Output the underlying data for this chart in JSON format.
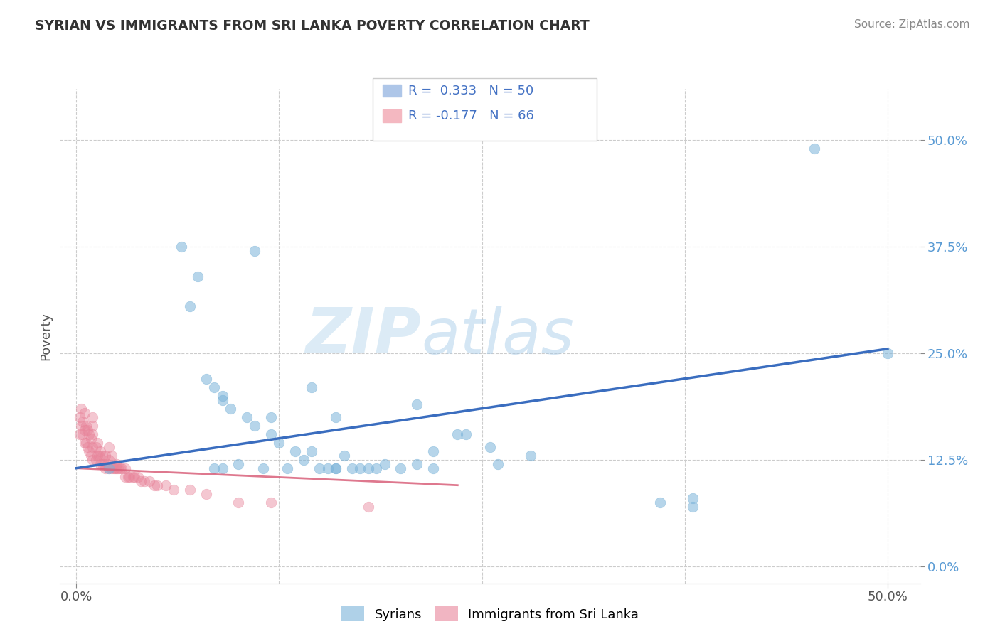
{
  "title": "SYRIAN VS IMMIGRANTS FROM SRI LANKA POVERTY CORRELATION CHART",
  "source": "Source: ZipAtlas.com",
  "ylabel": "Poverty",
  "ytick_values": [
    0.0,
    0.125,
    0.25,
    0.375,
    0.5
  ],
  "xtick_values": [
    0.0,
    0.125,
    0.25,
    0.375,
    0.5
  ],
  "xlim": [
    -0.01,
    0.52
  ],
  "ylim": [
    -0.02,
    0.56
  ],
  "syrians_color": "#7ab3d9",
  "srilanka_color": "#e8849a",
  "blue_line_color": "#3a6dbf",
  "pink_line_color": "#d9607a",
  "watermark_zip": "ZIP",
  "watermark_atlas": "atlas",
  "blue_line_x0": 0.0,
  "blue_line_y0": 0.115,
  "blue_line_x1": 0.5,
  "blue_line_y1": 0.255,
  "pink_line_x0": 0.0,
  "pink_line_y0": 0.115,
  "pink_line_x1": 0.235,
  "pink_line_y1": 0.095,
  "blue_scatter_x": [
    0.02,
    0.085,
    0.1,
    0.115,
    0.13,
    0.145,
    0.155,
    0.165,
    0.175,
    0.185,
    0.09,
    0.095,
    0.105,
    0.11,
    0.12,
    0.125,
    0.135,
    0.14,
    0.15,
    0.16,
    0.17,
    0.18,
    0.19,
    0.2,
    0.21,
    0.07,
    0.075,
    0.08,
    0.085,
    0.09,
    0.16,
    0.22,
    0.24,
    0.26,
    0.28,
    0.065,
    0.11,
    0.145,
    0.21,
    0.36,
    0.38,
    0.22,
    0.255,
    0.5,
    0.455,
    0.09,
    0.12,
    0.16,
    0.235,
    0.38
  ],
  "blue_scatter_y": [
    0.115,
    0.115,
    0.12,
    0.115,
    0.115,
    0.135,
    0.115,
    0.13,
    0.115,
    0.115,
    0.195,
    0.185,
    0.175,
    0.165,
    0.155,
    0.145,
    0.135,
    0.125,
    0.115,
    0.115,
    0.115,
    0.115,
    0.12,
    0.115,
    0.12,
    0.305,
    0.34,
    0.22,
    0.21,
    0.2,
    0.115,
    0.135,
    0.155,
    0.12,
    0.13,
    0.375,
    0.37,
    0.21,
    0.19,
    0.075,
    0.07,
    0.115,
    0.14,
    0.25,
    0.49,
    0.115,
    0.175,
    0.175,
    0.155,
    0.08
  ],
  "pink_scatter_x": [
    0.002,
    0.002,
    0.003,
    0.003,
    0.004,
    0.004,
    0.005,
    0.005,
    0.005,
    0.006,
    0.006,
    0.007,
    0.007,
    0.008,
    0.008,
    0.009,
    0.009,
    0.01,
    0.01,
    0.01,
    0.01,
    0.01,
    0.012,
    0.012,
    0.013,
    0.013,
    0.014,
    0.015,
    0.015,
    0.016,
    0.016,
    0.017,
    0.018,
    0.018,
    0.019,
    0.02,
    0.02,
    0.02,
    0.022,
    0.022,
    0.023,
    0.024,
    0.025,
    0.025,
    0.026,
    0.027,
    0.028,
    0.03,
    0.03,
    0.032,
    0.033,
    0.035,
    0.036,
    0.038,
    0.04,
    0.042,
    0.045,
    0.048,
    0.05,
    0.055,
    0.06,
    0.07,
    0.08,
    0.1,
    0.12,
    0.18
  ],
  "pink_scatter_y": [
    0.155,
    0.175,
    0.165,
    0.185,
    0.155,
    0.17,
    0.145,
    0.16,
    0.18,
    0.145,
    0.165,
    0.14,
    0.16,
    0.135,
    0.155,
    0.13,
    0.15,
    0.125,
    0.14,
    0.155,
    0.165,
    0.175,
    0.125,
    0.14,
    0.13,
    0.145,
    0.13,
    0.12,
    0.135,
    0.12,
    0.13,
    0.12,
    0.115,
    0.13,
    0.12,
    0.115,
    0.125,
    0.14,
    0.115,
    0.13,
    0.115,
    0.115,
    0.115,
    0.12,
    0.115,
    0.115,
    0.115,
    0.105,
    0.115,
    0.105,
    0.105,
    0.105,
    0.105,
    0.105,
    0.1,
    0.1,
    0.1,
    0.095,
    0.095,
    0.095,
    0.09,
    0.09,
    0.085,
    0.075,
    0.075,
    0.07
  ]
}
